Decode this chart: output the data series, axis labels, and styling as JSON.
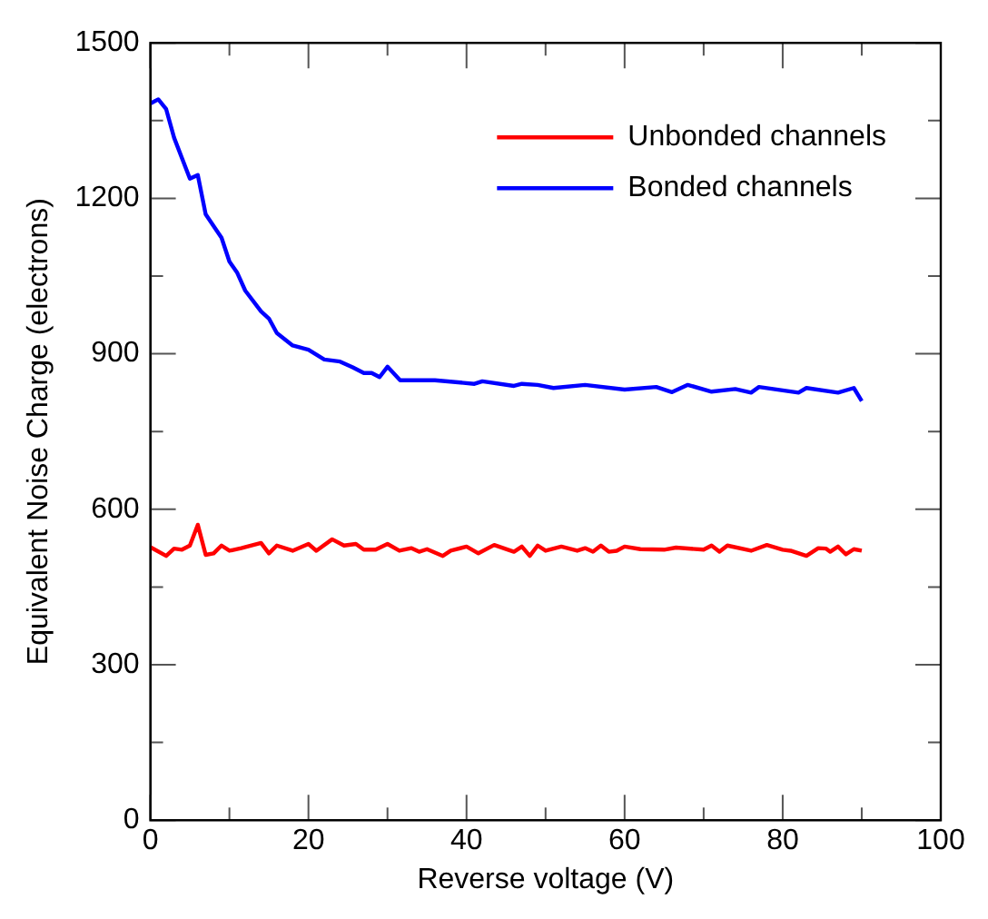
{
  "chart_data": {
    "type": "line",
    "xlabel": "Reverse voltage (V)",
    "ylabel": "Equivalent Noise Charge (electrons)",
    "xlim": [
      0,
      100
    ],
    "xticks": [
      0,
      20,
      40,
      60,
      80,
      100
    ],
    "ylim": [
      0,
      1500
    ],
    "yticks": [
      0,
      300,
      600,
      900,
      1200,
      1500
    ],
    "grid": false,
    "legend": "top right",
    "marker": "none",
    "line_style": "solid",
    "series": [
      {
        "name": "Unbonded channels",
        "color": "#ff0000",
        "x": [
          0,
          2,
          3,
          4,
          5,
          6,
          7,
          8,
          9,
          10,
          11.5,
          14,
          15,
          16,
          18,
          20,
          21,
          23,
          24.5,
          26,
          27,
          28.5,
          30,
          31.5,
          33,
          34,
          35,
          37,
          38,
          40,
          41.5,
          43.5,
          46,
          47,
          48,
          49,
          50,
          52,
          54,
          55,
          56,
          57,
          58,
          59,
          60,
          62,
          65,
          66.5,
          70,
          71,
          72,
          73,
          76,
          78,
          80,
          81,
          83,
          84.5,
          85.5,
          86,
          87,
          88,
          89,
          90
        ],
        "values": [
          527,
          510,
          524,
          522,
          530,
          570,
          512,
          515,
          530,
          520,
          525,
          535,
          515,
          530,
          520,
          533,
          520,
          542,
          530,
          533,
          522,
          522,
          533,
          520,
          525,
          518,
          523,
          510,
          520,
          528,
          515,
          531,
          518,
          528,
          510,
          530,
          520,
          528,
          520,
          525,
          518,
          530,
          518,
          520,
          528,
          523,
          522,
          526,
          522,
          530,
          518,
          530,
          520,
          531,
          522,
          520,
          510,
          525,
          524,
          518,
          528,
          513,
          523,
          520
        ]
      },
      {
        "name": "Bonded channels",
        "color": "#0000ff",
        "x": [
          0,
          1,
          2,
          3,
          5,
          6,
          7,
          9,
          10,
          11,
          12,
          14,
          15,
          16,
          18,
          20,
          22,
          24,
          25.6,
          27,
          28,
          29,
          30,
          31.6,
          33,
          36,
          41,
          42,
          46,
          47,
          49,
          51,
          55,
          60,
          64,
          66,
          68,
          71,
          74,
          76,
          77,
          82,
          83,
          87,
          89,
          90
        ],
        "values": [
          1383,
          1391,
          1372,
          1317,
          1238,
          1245,
          1169,
          1124,
          1078,
          1056,
          1022,
          982,
          968,
          940,
          916,
          908,
          889,
          885,
          874,
          863,
          863,
          855,
          875,
          849,
          849,
          849,
          842,
          847,
          838,
          842,
          840,
          834,
          840,
          831,
          836,
          826,
          840,
          827,
          832,
          825,
          836,
          825,
          834,
          825,
          834,
          809
        ]
      }
    ]
  }
}
